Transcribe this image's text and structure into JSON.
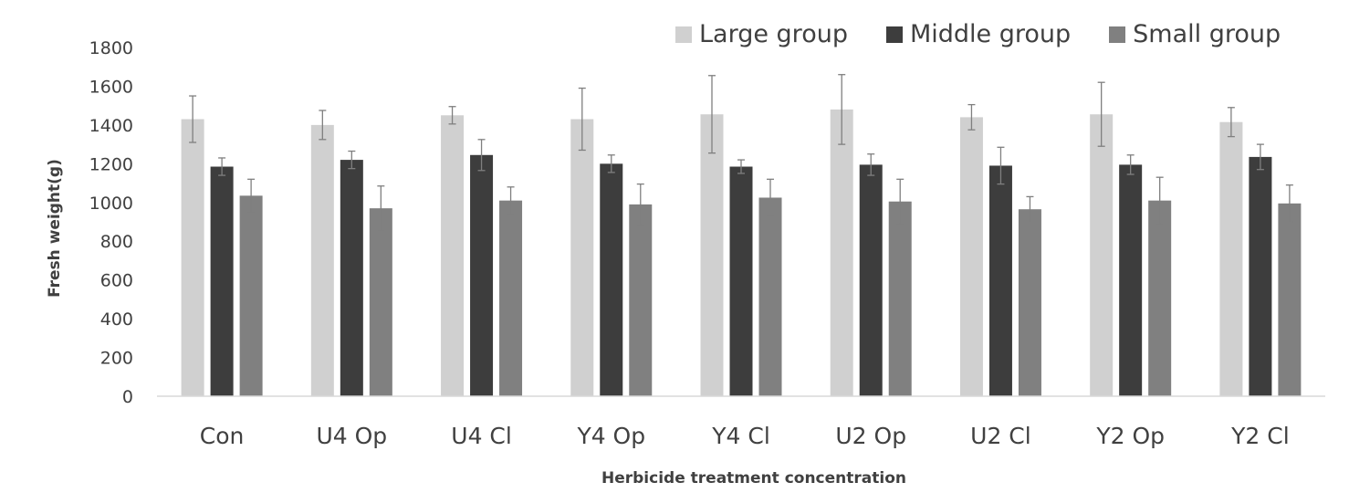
{
  "chart_data": {
    "type": "bar",
    "title": "",
    "xlabel": "Herbicide treatment concentration",
    "ylabel": "Fresh weight(g)",
    "ylim": [
      0,
      1800
    ],
    "yticks": [
      0,
      200,
      400,
      600,
      800,
      1000,
      1200,
      1400,
      1600,
      1800
    ],
    "grid": false,
    "legend_position": "top-right",
    "categories": [
      "Con",
      "U4 Op",
      "U4 Cl",
      "Y4 Op",
      "Y4 Cl",
      "U2 Op",
      "U2 Cl",
      "Y2 Op",
      "Y2 Cl"
    ],
    "series": [
      {
        "name": "Large group",
        "color": "#d0d0d0",
        "values": [
          1430,
          1400,
          1450,
          1430,
          1455,
          1480,
          1440,
          1455,
          1415
        ],
        "errors": [
          120,
          75,
          45,
          160,
          200,
          180,
          65,
          165,
          75
        ]
      },
      {
        "name": "Middle group",
        "color": "#3d3d3d",
        "values": [
          1185,
          1220,
          1245,
          1200,
          1185,
          1195,
          1190,
          1195,
          1235
        ],
        "errors": [
          45,
          45,
          80,
          45,
          35,
          55,
          95,
          50,
          65
        ]
      },
      {
        "name": "Small group",
        "color": "#808080",
        "values": [
          1035,
          970,
          1010,
          990,
          1025,
          1005,
          965,
          1010,
          995
        ],
        "errors": [
          85,
          115,
          70,
          105,
          95,
          115,
          65,
          120,
          95
        ]
      }
    ]
  }
}
